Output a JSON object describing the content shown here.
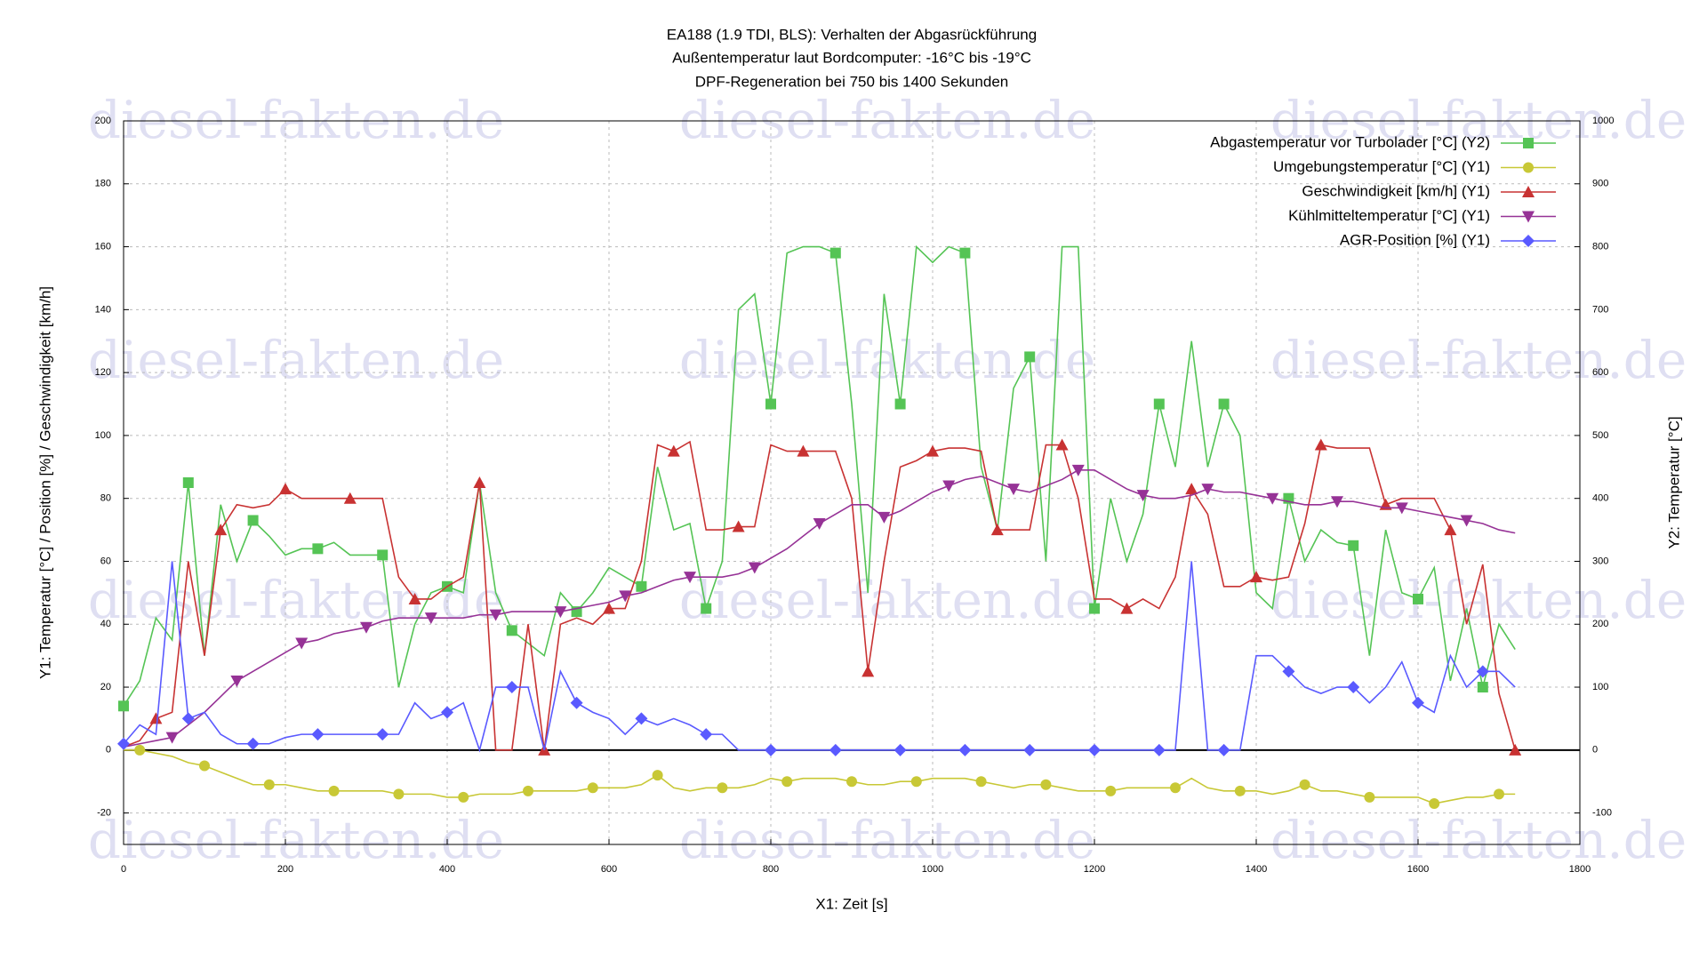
{
  "chart_data": {
    "type": "line",
    "title": "EA188 (1.9 TDI, BLS): Verhalten der Abgasrückführung",
    "subtitle": "Außentemperatur laut Bordcomputer: -16°C bis -19°C",
    "annotation": "DPF-Regeneration bei 750 bis 1400 Sekunden",
    "watermark": "diesel-fakten.de",
    "x_label": "X1: Zeit [s]",
    "y_label": "Y1: Temperatur [°C] / Position [%] / Geschwindigkeit [km/h]",
    "y2_label": "Y2: Temperatur [°C]",
    "xlim": [
      0,
      1800
    ],
    "xticks": [
      0,
      200,
      400,
      600,
      800,
      1000,
      1200,
      1400,
      1600,
      1800
    ],
    "ylim": [
      -30,
      200
    ],
    "yticks": [
      -20,
      0,
      20,
      40,
      60,
      80,
      100,
      120,
      140,
      160,
      180,
      200
    ],
    "y2lim": [
      -150,
      1000
    ],
    "y2ticks": [
      -100,
      0,
      100,
      200,
      300,
      400,
      500,
      600,
      700,
      800,
      900,
      1000
    ],
    "grid": true,
    "legend": "top-right",
    "x": [
      0,
      20,
      40,
      60,
      80,
      100,
      120,
      140,
      160,
      180,
      200,
      220,
      240,
      260,
      280,
      300,
      320,
      340,
      360,
      380,
      400,
      420,
      440,
      460,
      480,
      500,
      520,
      540,
      560,
      580,
      600,
      620,
      640,
      660,
      680,
      700,
      720,
      740,
      760,
      780,
      800,
      820,
      840,
      860,
      880,
      900,
      920,
      940,
      960,
      980,
      1000,
      1020,
      1040,
      1060,
      1080,
      1100,
      1120,
      1140,
      1160,
      1180,
      1200,
      1220,
      1240,
      1260,
      1280,
      1300,
      1320,
      1340,
      1360,
      1380,
      1400,
      1420,
      1440,
      1460,
      1480,
      1500,
      1520,
      1540,
      1560,
      1580,
      1600,
      1620,
      1640,
      1660,
      1680,
      1700,
      1720
    ],
    "series": [
      {
        "name": "Abgastemperatur vor Turbolader [°C] (Y2)",
        "color": "#55c455",
        "marker": "square",
        "axis": "y2",
        "values": [
          70,
          110,
          210,
          175,
          425,
          150,
          390,
          300,
          365,
          340,
          310,
          320,
          320,
          330,
          310,
          310,
          310,
          100,
          200,
          250,
          260,
          250,
          425,
          250,
          190,
          170,
          150,
          250,
          220,
          250,
          290,
          275,
          260,
          450,
          350,
          360,
          225,
          300,
          700,
          725,
          550,
          790,
          800,
          800,
          790,
          550,
          250,
          725,
          550,
          800,
          775,
          800,
          790,
          450,
          350,
          575,
          625,
          300,
          800,
          800,
          225,
          400,
          300,
          375,
          550,
          450,
          650,
          450,
          550,
          500,
          250,
          225,
          400,
          300,
          350,
          330,
          325,
          150,
          350,
          250,
          240,
          290,
          110,
          225,
          100,
          200,
          160
        ]
      },
      {
        "name": "Umgebungstemperatur [°C] (Y1)",
        "color": "#c8c836",
        "marker": "circle",
        "values": [
          0,
          0,
          -1,
          -2,
          -4,
          -5,
          -7,
          -9,
          -11,
          -11,
          -11,
          -12,
          -13,
          -13,
          -13,
          -13,
          -13,
          -14,
          -14,
          -14,
          -15,
          -15,
          -14,
          -14,
          -14,
          -13,
          -13,
          -13,
          -13,
          -12,
          -12,
          -12,
          -11,
          -8,
          -12,
          -13,
          -12,
          -12,
          -12,
          -11,
          -9,
          -10,
          -9,
          -9,
          -9,
          -10,
          -11,
          -11,
          -10,
          -10,
          -9,
          -9,
          -9,
          -10,
          -11,
          -12,
          -11,
          -11,
          -12,
          -13,
          -13,
          -13,
          -12,
          -12,
          -12,
          -12,
          -9,
          -12,
          -13,
          -13,
          -13,
          -14,
          -13,
          -11,
          -13,
          -13,
          -14,
          -15,
          -15,
          -15,
          -15,
          -17,
          -16,
          -15,
          -15,
          -14,
          -14
        ]
      },
      {
        "name": "Geschwindigkeit [km/h] (Y1)",
        "color": "#c83232",
        "marker": "triangle-up",
        "values": [
          1,
          3,
          10,
          12,
          60,
          30,
          70,
          78,
          77,
          78,
          83,
          80,
          80,
          80,
          80,
          80,
          80,
          55,
          48,
          48,
          52,
          55,
          85,
          0,
          0,
          40,
          0,
          40,
          42,
          40,
          45,
          45,
          60,
          97,
          95,
          98,
          70,
          70,
          71,
          71,
          97,
          95,
          95,
          95,
          95,
          80,
          25,
          60,
          90,
          92,
          95,
          96,
          96,
          95,
          70,
          70,
          70,
          97,
          97,
          80,
          48,
          48,
          45,
          48,
          45,
          55,
          83,
          75,
          52,
          52,
          55,
          54,
          55,
          72,
          97,
          96,
          96,
          96,
          78,
          80,
          80,
          80,
          70,
          40,
          59,
          18,
          0
        ]
      },
      {
        "name": "Kühlmitteltemperatur [°C] (Y1)",
        "color": "#963296",
        "marker": "triangle-down",
        "values": [
          1,
          2,
          3,
          4,
          8,
          12,
          17,
          22,
          25,
          28,
          31,
          34,
          35,
          37,
          38,
          39,
          41,
          42,
          42,
          42,
          42,
          42,
          43,
          43,
          44,
          44,
          44,
          44,
          45,
          46,
          47,
          49,
          50,
          52,
          54,
          55,
          55,
          55,
          56,
          58,
          61,
          64,
          68,
          72,
          75,
          78,
          78,
          74,
          76,
          79,
          82,
          84,
          86,
          87,
          85,
          83,
          82,
          84,
          86,
          89,
          89,
          86,
          83,
          81,
          80,
          80,
          81,
          83,
          82,
          82,
          81,
          80,
          79,
          78,
          78,
          79,
          79,
          78,
          77,
          77,
          76,
          75,
          74,
          73,
          72,
          70,
          69
        ]
      },
      {
        "name": "AGR-Position [%] (Y1)",
        "color": "#5a5aff",
        "marker": "diamond",
        "values": [
          2,
          8,
          5,
          60,
          10,
          12,
          5,
          2,
          2,
          2,
          4,
          5,
          5,
          5,
          5,
          5,
          5,
          5,
          15,
          10,
          12,
          15,
          0,
          20,
          20,
          20,
          0,
          25,
          15,
          12,
          10,
          5,
          10,
          8,
          10,
          8,
          5,
          5,
          0,
          0,
          0,
          0,
          0,
          0,
          0,
          0,
          0,
          0,
          0,
          0,
          0,
          0,
          0,
          0,
          0,
          0,
          0,
          0,
          0,
          0,
          0,
          0,
          0,
          0,
          0,
          0,
          60,
          0,
          0,
          0,
          30,
          30,
          25,
          20,
          18,
          20,
          20,
          15,
          20,
          28,
          15,
          12,
          30,
          20,
          25,
          25,
          20
        ]
      }
    ]
  }
}
